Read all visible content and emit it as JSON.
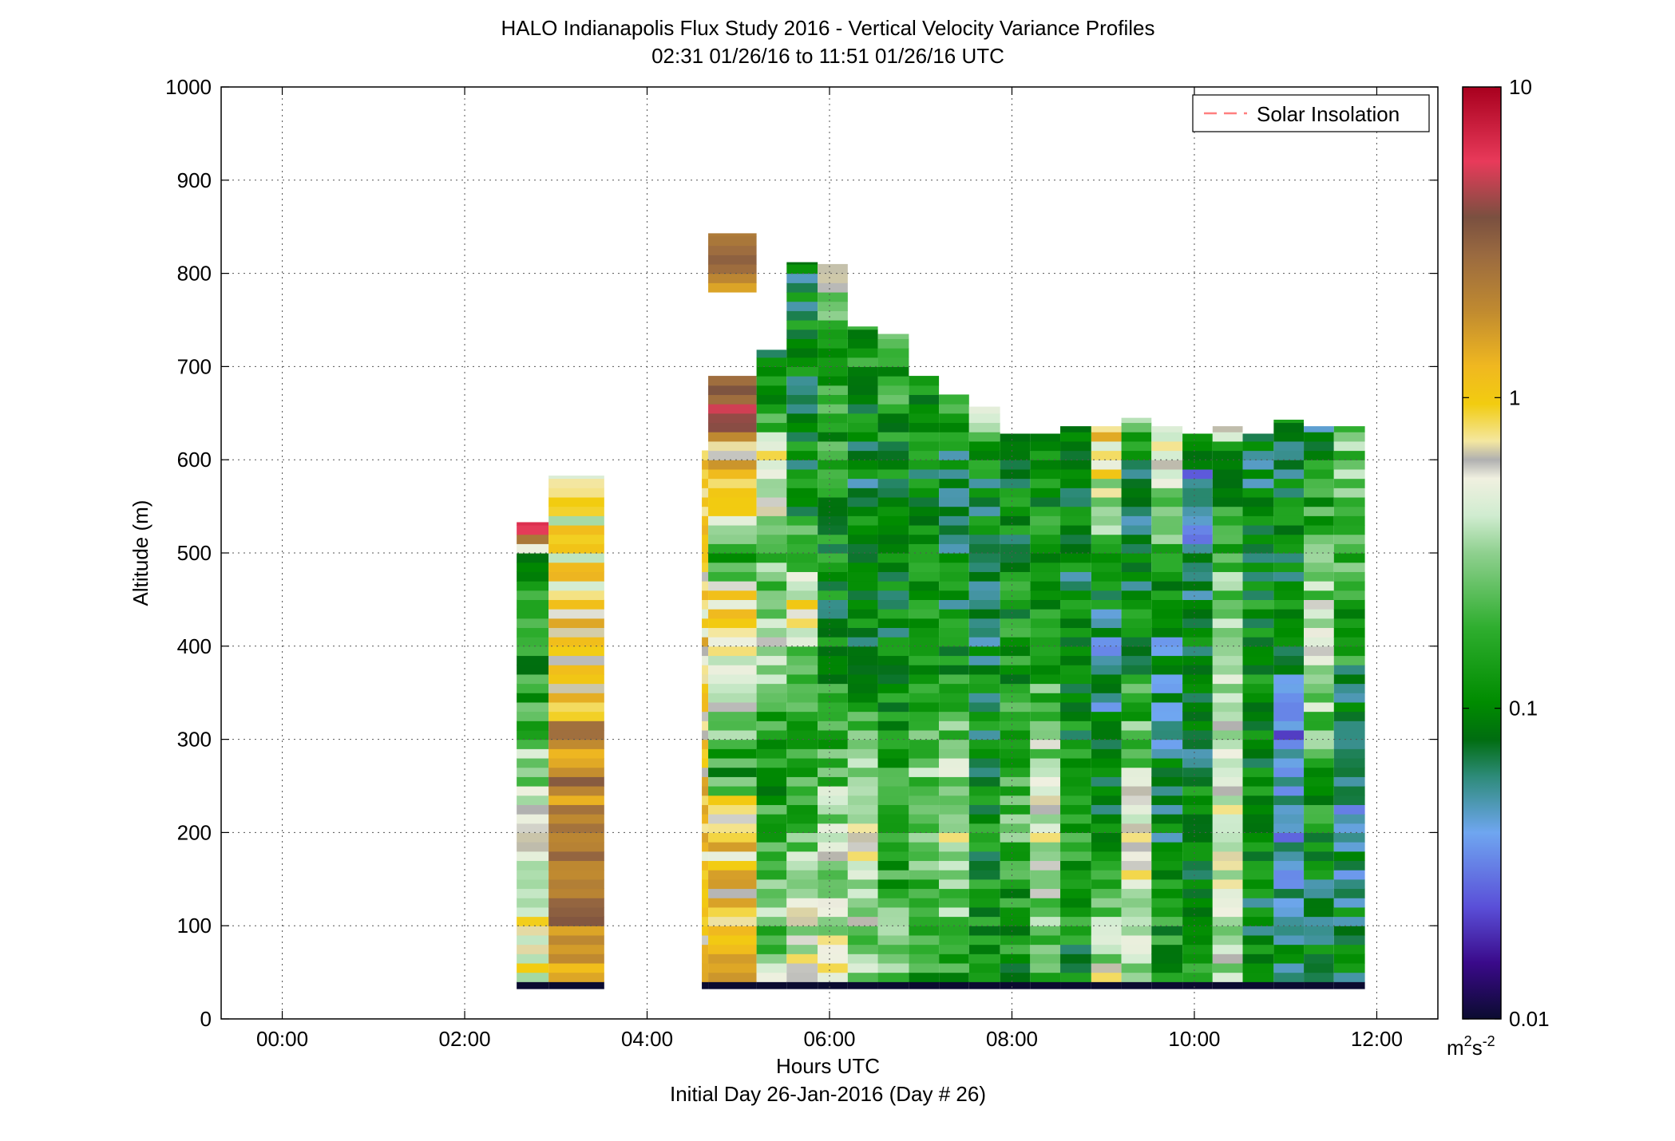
{
  "chart_data": {
    "type": "heatmap",
    "title": "HALO Indianapolis Flux Study 2016 - Vertical Velocity Variance Profiles",
    "subtitle": "02:31 01/26/16 to 11:51 01/26/16  UTC",
    "xlabel": "Hours UTC",
    "xlabel2": "Initial Day 26-Jan-2016 (Day # 26)",
    "ylabel": "Altitude (m)",
    "xlim": [
      -0.67,
      12.67
    ],
    "ylim": [
      0,
      1000
    ],
    "x_ticks": [
      0,
      2,
      4,
      6,
      8,
      10,
      12
    ],
    "x_tick_labels": [
      "00:00",
      "02:00",
      "04:00",
      "06:00",
      "08:00",
      "10:00",
      "12:00"
    ],
    "y_ticks": [
      0,
      100,
      200,
      300,
      400,
      500,
      600,
      700,
      800,
      900,
      1000
    ],
    "y_tick_labels": [
      "0",
      "100",
      "200",
      "300",
      "400",
      "500",
      "600",
      "700",
      "800",
      "900",
      "1000"
    ],
    "grid": true,
    "legend": {
      "placement": "top-right",
      "entries": [
        {
          "name": "Solar Insolation",
          "color": "#ff7f7f",
          "style": "dashed"
        }
      ]
    },
    "colorbar": {
      "scale": "log",
      "range": [
        0.01,
        10
      ],
      "tick_values": [
        0.01,
        0.1,
        1,
        10
      ],
      "tick_labels": [
        "0.01",
        "0.1",
        "1",
        "10"
      ],
      "units": "m²s⁻²",
      "unit_base": "m",
      "unit_exp1": "2",
      "unit_mid": "s",
      "unit_exp2": "-2",
      "stops": [
        [
          0.0,
          "#0b0b30"
        ],
        [
          0.06,
          "#3a0a8a"
        ],
        [
          0.12,
          "#5a4fd8"
        ],
        [
          0.2,
          "#6fa6f0"
        ],
        [
          0.26,
          "#2e8b7a"
        ],
        [
          0.3,
          "#006d10"
        ],
        [
          0.34,
          "#008c00"
        ],
        [
          0.42,
          "#2fae2f"
        ],
        [
          0.5,
          "#8fd08f"
        ],
        [
          0.54,
          "#d0ecd0"
        ],
        [
          0.58,
          "#f0f0e0"
        ],
        [
          0.6,
          "#b0b0b0"
        ],
        [
          0.62,
          "#f4e7a0"
        ],
        [
          0.66,
          "#f2cc10"
        ],
        [
          0.7,
          "#f0b820"
        ],
        [
          0.76,
          "#c08a30"
        ],
        [
          0.82,
          "#9a6a40"
        ],
        [
          0.86,
          "#7a5040"
        ],
        [
          0.92,
          "#e83a5a"
        ],
        [
          1.0,
          "#a8001e"
        ]
      ]
    },
    "bin_height_m": 10,
    "columns": [
      {
        "start": 2.57,
        "end": 2.92,
        "top": 533,
        "profile": [
          [
            0,
            0.7
          ],
          [
            200,
            0.5
          ],
          [
            400,
            0.12
          ],
          [
            500,
            0.15
          ],
          [
            520,
            4.5
          ]
        ]
      },
      {
        "start": 2.92,
        "end": 3.53,
        "top": 583,
        "profile": [
          [
            0,
            1.6
          ],
          [
            100,
            2.2
          ],
          [
            300,
            2.4
          ],
          [
            340,
            1.3
          ],
          [
            460,
            0.8
          ],
          [
            540,
            0.6
          ],
          [
            583,
            0.7
          ]
        ]
      },
      {
        "start": 4.6,
        "end": 4.67,
        "top": 610,
        "profile": [
          [
            0,
            1.0
          ],
          [
            300,
            0.9
          ],
          [
            610,
            0.8
          ]
        ]
      },
      {
        "start": 4.67,
        "end": 5.2,
        "top": 843,
        "gap": [
          684,
          776
        ],
        "profile": [
          [
            0,
            1.5
          ],
          [
            150,
            0.9
          ],
          [
            230,
            0.9
          ],
          [
            260,
            0.12
          ],
          [
            350,
            0.5
          ],
          [
            450,
            0.7
          ],
          [
            500,
            0.15
          ],
          [
            560,
            0.8
          ],
          [
            620,
            1.2
          ],
          [
            650,
            5.0
          ],
          [
            684,
            2.5
          ],
          [
            776,
            1.8
          ],
          [
            843,
            2.0
          ]
        ]
      },
      {
        "start": 5.2,
        "end": 5.53,
        "top": 718,
        "profile": [
          [
            0,
            0.4
          ],
          [
            150,
            0.2
          ],
          [
            300,
            0.12
          ],
          [
            400,
            0.5
          ],
          [
            500,
            0.2
          ],
          [
            600,
            0.8
          ],
          [
            650,
            0.12
          ],
          [
            718,
            0.1
          ]
        ]
      },
      {
        "start": 5.53,
        "end": 5.87,
        "top": 812,
        "profile": [
          [
            0,
            0.8
          ],
          [
            150,
            0.3
          ],
          [
            300,
            0.12
          ],
          [
            450,
            0.6
          ],
          [
            550,
            0.1
          ],
          [
            700,
            0.1
          ],
          [
            812,
            0.08
          ]
        ]
      },
      {
        "start": 5.87,
        "end": 6.2,
        "top": 810,
        "profile": [
          [
            0,
            0.5
          ],
          [
            150,
            0.4
          ],
          [
            300,
            0.2
          ],
          [
            450,
            0.1
          ],
          [
            600,
            0.15
          ],
          [
            750,
            0.2
          ],
          [
            810,
            0.6
          ]
        ]
      },
      {
        "start": 6.2,
        "end": 6.53,
        "top": 743,
        "profile": [
          [
            0,
            0.2
          ],
          [
            200,
            0.6
          ],
          [
            400,
            0.1
          ],
          [
            600,
            0.08
          ],
          [
            743,
            0.15
          ]
        ]
      },
      {
        "start": 6.53,
        "end": 6.87,
        "top": 735,
        "profile": [
          [
            0,
            0.3
          ],
          [
            200,
            0.15
          ],
          [
            400,
            0.1
          ],
          [
            600,
            0.1
          ],
          [
            735,
            0.2
          ]
        ]
      },
      {
        "start": 6.87,
        "end": 7.2,
        "top": 690,
        "profile": [
          [
            0,
            0.1
          ],
          [
            200,
            0.3
          ],
          [
            400,
            0.15
          ],
          [
            600,
            0.1
          ],
          [
            690,
            0.12
          ]
        ]
      },
      {
        "start": 7.2,
        "end": 7.53,
        "top": 670,
        "profile": [
          [
            0,
            0.12
          ],
          [
            200,
            0.5
          ],
          [
            400,
            0.1
          ],
          [
            600,
            0.08
          ],
          [
            670,
            0.4
          ]
        ]
      },
      {
        "start": 7.53,
        "end": 7.87,
        "top": 657,
        "profile": [
          [
            0,
            0.1
          ],
          [
            200,
            0.12
          ],
          [
            400,
            0.08
          ],
          [
            600,
            0.1
          ],
          [
            657,
            0.35
          ]
        ]
      },
      {
        "start": 7.87,
        "end": 8.2,
        "top": 628,
        "profile": [
          [
            0,
            0.08
          ],
          [
            200,
            0.2
          ],
          [
            400,
            0.12
          ],
          [
            628,
            0.1
          ]
        ]
      },
      {
        "start": 8.2,
        "end": 8.53,
        "top": 628,
        "profile": [
          [
            0,
            0.1
          ],
          [
            200,
            0.6
          ],
          [
            400,
            0.15
          ],
          [
            628,
            0.12
          ]
        ]
      },
      {
        "start": 8.53,
        "end": 8.87,
        "top": 636,
        "profile": [
          [
            0,
            0.1
          ],
          [
            200,
            0.15
          ],
          [
            400,
            0.08
          ],
          [
            636,
            0.12
          ]
        ]
      },
      {
        "start": 8.87,
        "end": 9.2,
        "top": 636,
        "profile": [
          [
            0,
            0.7
          ],
          [
            200,
            0.12
          ],
          [
            400,
            0.05
          ],
          [
            636,
            1.1
          ]
        ]
      },
      {
        "start": 9.2,
        "end": 9.53,
        "top": 645,
        "profile": [
          [
            0,
            0.3
          ],
          [
            200,
            0.6
          ],
          [
            400,
            0.1
          ],
          [
            600,
            0.08
          ],
          [
            645,
            0.25
          ]
        ]
      },
      {
        "start": 9.53,
        "end": 9.87,
        "top": 636,
        "profile": [
          [
            0,
            0.2
          ],
          [
            200,
            0.08
          ],
          [
            400,
            0.06
          ],
          [
            636,
            0.7
          ]
        ]
      },
      {
        "start": 9.87,
        "end": 10.2,
        "top": 628,
        "profile": [
          [
            0,
            0.12
          ],
          [
            200,
            0.1
          ],
          [
            400,
            0.08
          ],
          [
            580,
            0.04
          ],
          [
            628,
            0.1
          ]
        ]
      },
      {
        "start": 10.2,
        "end": 10.53,
        "top": 636,
        "profile": [
          [
            0,
            0.3
          ],
          [
            200,
            0.5
          ],
          [
            400,
            0.5
          ],
          [
            600,
            0.07
          ],
          [
            636,
            0.8
          ]
        ]
      },
      {
        "start": 10.53,
        "end": 10.87,
        "top": 628,
        "profile": [
          [
            0,
            0.08
          ],
          [
            200,
            0.1
          ],
          [
            400,
            0.12
          ],
          [
            628,
            0.07
          ]
        ]
      },
      {
        "start": 10.87,
        "end": 11.2,
        "top": 643,
        "profile": [
          [
            0,
            0.1
          ],
          [
            200,
            0.04
          ],
          [
            300,
            0.03
          ],
          [
            400,
            0.1
          ],
          [
            643,
            0.08
          ]
        ]
      },
      {
        "start": 11.2,
        "end": 11.53,
        "top": 636,
        "profile": [
          [
            0,
            0.08
          ],
          [
            200,
            0.1
          ],
          [
            400,
            0.5
          ],
          [
            600,
            0.1
          ],
          [
            636,
            0.07
          ]
        ]
      },
      {
        "start": 11.53,
        "end": 11.87,
        "top": 636,
        "profile": [
          [
            0,
            0.1
          ],
          [
            200,
            0.06
          ],
          [
            300,
            0.04
          ],
          [
            400,
            0.15
          ],
          [
            636,
            0.3
          ]
        ]
      }
    ]
  }
}
